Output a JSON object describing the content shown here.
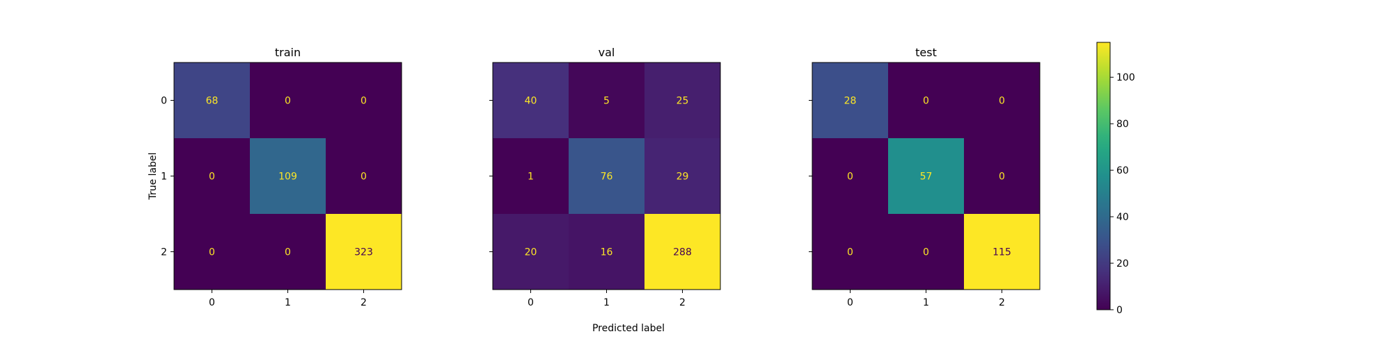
{
  "chart_data": {
    "type": "heatmap",
    "x_label": "Predicted label",
    "y_label": "True label",
    "x_ticks": [
      "0",
      "1",
      "2"
    ],
    "y_ticks": [
      "0",
      "1",
      "2"
    ],
    "colormap": "viridis",
    "panels": [
      {
        "title": "train",
        "matrix": [
          [
            68,
            0,
            0
          ],
          [
            0,
            109,
            0
          ],
          [
            0,
            0,
            323
          ]
        ]
      },
      {
        "title": "val",
        "matrix": [
          [
            40,
            5,
            25
          ],
          [
            1,
            76,
            29
          ],
          [
            20,
            16,
            288
          ]
        ]
      },
      {
        "title": "test",
        "matrix": [
          [
            28,
            0,
            0
          ],
          [
            0,
            57,
            0
          ],
          [
            0,
            0,
            115
          ]
        ]
      }
    ],
    "colorbar": {
      "min": 0,
      "max": 115,
      "ticks": [
        0,
        20,
        40,
        60,
        80,
        100
      ]
    },
    "colors": {
      "low_text": "#fde725",
      "high_text": "#440154"
    }
  }
}
